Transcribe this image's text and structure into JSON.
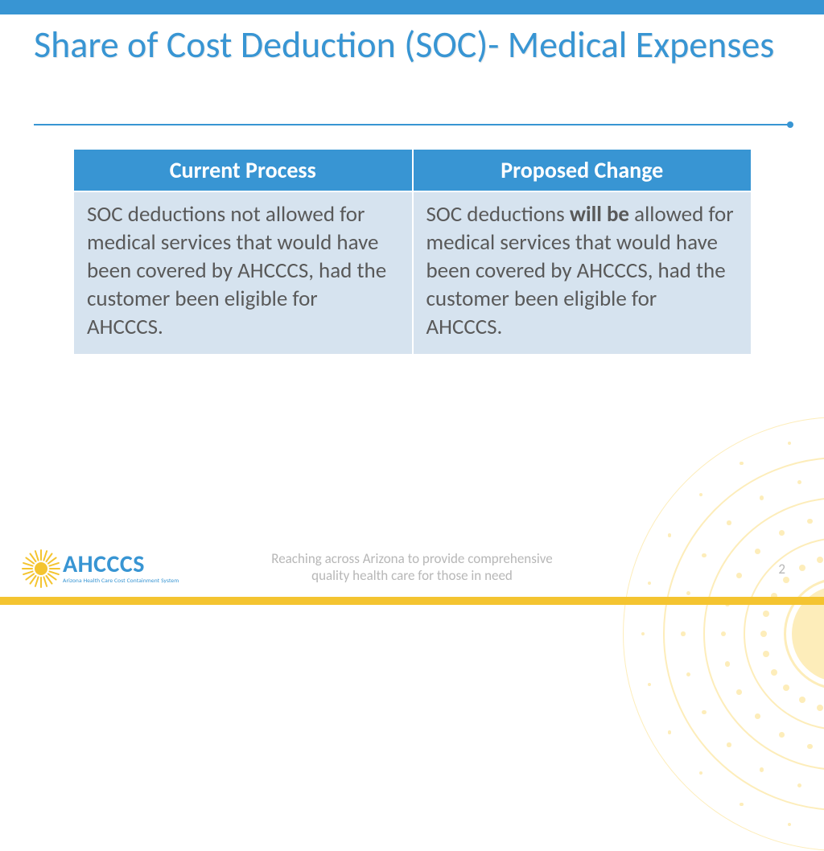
{
  "theme": {
    "accent": "#3895d3",
    "gold": "#f4c430",
    "cell_bg": "#d6e3ef",
    "text_gray": "#595959",
    "muted_gray": "#b7b7b7",
    "background": "#ffffff"
  },
  "title": "Share of Cost Deduction (SOC)- Medical Expenses",
  "table": {
    "columns": [
      "Current Process",
      "Proposed Change"
    ],
    "rows": [
      {
        "current": "SOC deductions not allowed for medical services that would have been covered by AHCCCS, had the customer been eligible for AHCCCS.",
        "proposed_prefix": "SOC deductions ",
        "proposed_bold": "will be",
        "proposed_suffix": " allowed for medical services that would have been covered by AHCCCS, had the customer been eligible for AHCCCS."
      }
    ],
    "header_bg": "#3895d3",
    "header_color": "#ffffff",
    "cell_bg": "#d6e3ef",
    "cell_color": "#595959",
    "header_fontsize": 28,
    "cell_fontsize": 27
  },
  "footer": {
    "tagline_line1": "Reaching across Arizona to provide comprehensive",
    "tagline_line2": "quality health care for those in need",
    "page_number": "2"
  },
  "logo": {
    "main": "AHCCCS",
    "sub": "Arizona Health Care Cost Containment System",
    "color": "#3895d3",
    "sun_color": "#f4c430"
  },
  "sunburst": {
    "color": "#fde9a8",
    "arc_color": "rgba(252,223,130,0.55)"
  }
}
